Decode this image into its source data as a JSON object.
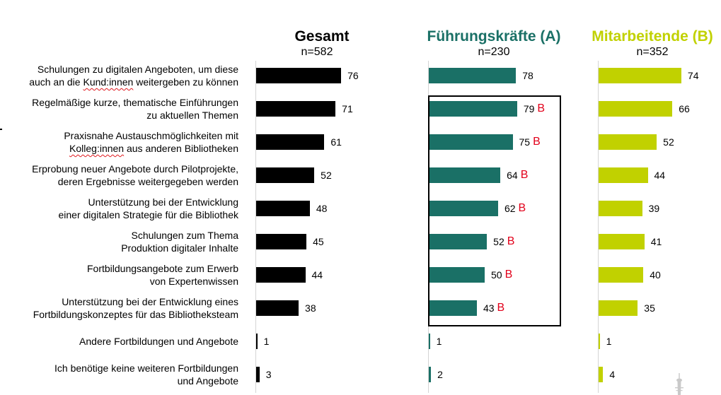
{
  "chart_data": {
    "type": "bar",
    "categories": [
      [
        "Schulungen zu digitalen Angeboten, um diese",
        "auch an die Kund:innen weitergeben zu können"
      ],
      [
        "Regelmäßige kurze, thematische Einführungen",
        "zu aktuellen Themen"
      ],
      [
        "Praxisnahe Austauschmöglichkeiten mit",
        "Kolleg:innen aus anderen Bibliotheken"
      ],
      [
        "Erprobung neuer Angebote durch Pilotprojekte,",
        "deren Ergebnisse weitergegeben werden"
      ],
      [
        "Unterstützung bei der Entwicklung",
        "einer digitalen Strategie für die Bibliothek"
      ],
      [
        "Schulungen zum Thema",
        "Produktion digitaler Inhalte"
      ],
      [
        "Fortbildungsangebote zum Erwerb",
        "von Expertenwissen"
      ],
      [
        "Unterstützung bei der Entwicklung eines",
        "Fortbildungskonzeptes für das Bibliotheksteam"
      ],
      [
        "Andere Fortbildungen und Angebote"
      ],
      [
        "Ich benötige keine weiteren Fortbildungen",
        "und Angebote"
      ]
    ],
    "spellcheck_underlined": [
      "Kund:innen",
      "Kolleg:innen"
    ],
    "series": [
      {
        "name": "Gesamt",
        "sample": "n=582",
        "color": "#000000",
        "values": [
          76,
          71,
          61,
          52,
          48,
          45,
          44,
          38,
          1,
          3
        ]
      },
      {
        "name": "Führungskräfte (A)",
        "sample": "n=230",
        "color": "#1a7066",
        "values": [
          78,
          79,
          75,
          64,
          62,
          52,
          50,
          43,
          1,
          2
        ],
        "significance": [
          "",
          "B",
          "B",
          "B",
          "B",
          "B",
          "B",
          "B",
          "",
          ""
        ]
      },
      {
        "name": "Mitarbeitende (B)",
        "sample": "n=352",
        "color": "#c1d100",
        "values": [
          74,
          66,
          52,
          44,
          39,
          41,
          40,
          35,
          1,
          4
        ]
      }
    ],
    "significance_color": "#e2001a",
    "highlight_box": {
      "series": 1,
      "categories": [
        1,
        7
      ]
    },
    "xlim": [
      0,
      100
    ],
    "grid": false
  }
}
